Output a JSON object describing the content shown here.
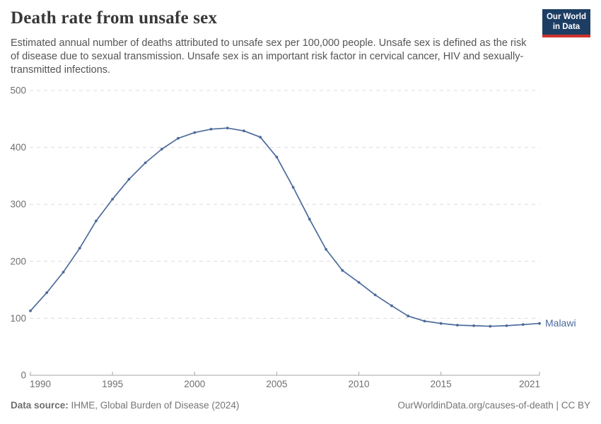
{
  "header": {
    "title": "Death rate from unsafe sex",
    "subtitle": "Estimated annual number of deaths attributed to unsafe sex per 100,000 people. Unsafe sex is defined as the risk of disease due to sexual transmission. Unsafe sex is an important risk factor in cervical cancer, HIV and sexually-transmitted infections."
  },
  "logo": {
    "line1": "Our World",
    "line2": "in Data",
    "bg_color": "#1d3d63",
    "bar_color": "#cc342d"
  },
  "chart_data": {
    "type": "line",
    "title": "Death rate from unsafe sex",
    "xlabel": "",
    "ylabel": "",
    "x": [
      1990,
      1991,
      1992,
      1993,
      1994,
      1995,
      1996,
      1997,
      1998,
      1999,
      2000,
      2001,
      2002,
      2003,
      2004,
      2005,
      2006,
      2007,
      2008,
      2009,
      2010,
      2011,
      2012,
      2013,
      2014,
      2015,
      2016,
      2017,
      2018,
      2019,
      2020,
      2021
    ],
    "series": [
      {
        "name": "Malawi",
        "color": "#4c6a9c",
        "values": [
          113,
          145,
          181,
          223,
          271,
          309,
          344,
          373,
          397,
          416,
          426,
          432,
          434,
          429,
          418,
          383,
          330,
          274,
          221,
          184,
          163,
          141,
          122,
          104,
          95,
          91,
          88,
          87,
          86,
          87,
          89,
          91
        ]
      }
    ],
    "xlim": [
      1990,
      2021
    ],
    "ylim": [
      0,
      500
    ],
    "yticks": [
      0,
      100,
      200,
      300,
      400,
      500
    ],
    "xticks": [
      1990,
      1995,
      2000,
      2005,
      2010,
      2015,
      2021
    ],
    "grid": "horizontal-dashed",
    "legend": "end-of-line-label",
    "gridline_color": "#dcdcdc",
    "axis_color": "#a5a5a5",
    "tick_label_color": "#6f6f6f"
  },
  "footer": {
    "source_label": "Data source:",
    "source_text": " IHME, Global Burden of Disease (2024)",
    "right_text": "OurWorldinData.org/causes-of-death | CC BY"
  }
}
